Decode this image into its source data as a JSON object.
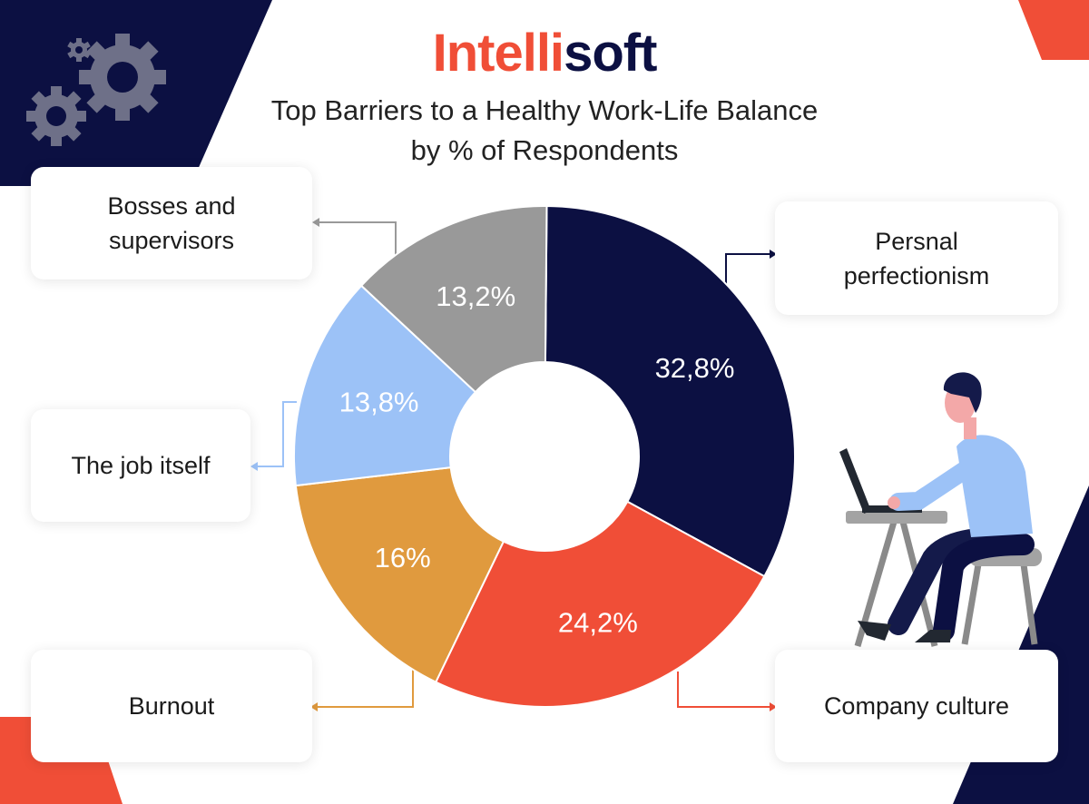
{
  "brand": {
    "part1": "Intelli",
    "part2": "soft"
  },
  "chart_data": {
    "type": "pie",
    "title": "Top Barriers to a Healthy Work-Life Balance by % of Respondents",
    "title_lines": [
      "Top Barriers to a Healthy Work-Life Balance",
      "by % of Respondents"
    ],
    "donut": true,
    "slices": [
      {
        "label": "Persnal perfectionism",
        "label_lines": [
          "Persnal",
          "perfectionism"
        ],
        "value": 32.8,
        "display": "32,8%",
        "color": "#0c1042"
      },
      {
        "label": "Company culture",
        "label_lines": [
          "Company culture"
        ],
        "value": 24.2,
        "display": "24,2%",
        "color": "#f04e37"
      },
      {
        "label": "Burnout",
        "label_lines": [
          "Burnout"
        ],
        "value": 16,
        "display": "16%",
        "color": "#e09a3e"
      },
      {
        "label": "The job itself",
        "label_lines": [
          "The job itself"
        ],
        "value": 13.8,
        "display": "13,8%",
        "color": "#9cc2f7"
      },
      {
        "label": "Bosses and supervisors",
        "label_lines": [
          "Bosses and",
          "supervisors"
        ],
        "value": 13.2,
        "display": "13,2%",
        "color": "#999999"
      }
    ]
  },
  "colors": {
    "navy": "#0c1042",
    "red": "#f04e37",
    "gear": "#6e7088"
  },
  "decor": [
    "gear-icon",
    "person-at-laptop-illustration"
  ]
}
